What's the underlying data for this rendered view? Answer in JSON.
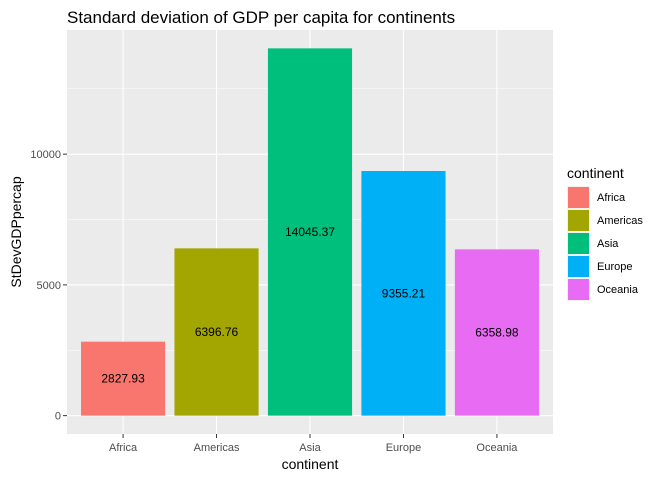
{
  "chart_data": {
    "type": "bar",
    "title": "Standard deviation of GDP per capita for continents",
    "xlabel": "continent",
    "ylabel": "StDevGDPpercap",
    "categories": [
      "Africa",
      "Americas",
      "Asia",
      "Europe",
      "Oceania"
    ],
    "values": [
      2827.93,
      6396.76,
      14045.37,
      9355.21,
      6358.98
    ],
    "data_labels": [
      "2827.93",
      "6396.76",
      "14045.37",
      "9355.21",
      "6358.98"
    ],
    "colors": [
      "#F8766D",
      "#A3A500",
      "#00BF7D",
      "#00B0F6",
      "#E76BF3"
    ],
    "yticks": [
      0,
      5000,
      10000
    ],
    "ytick_labels": [
      "0",
      "5000",
      "10000"
    ],
    "ylim": [
      -702.27,
      14747.64
    ],
    "grid": true,
    "panel_background": "#EBEBEB",
    "legend": {
      "title": "continent",
      "placement": "right",
      "entries": [
        "Africa",
        "Americas",
        "Asia",
        "Europe",
        "Oceania"
      ]
    }
  }
}
